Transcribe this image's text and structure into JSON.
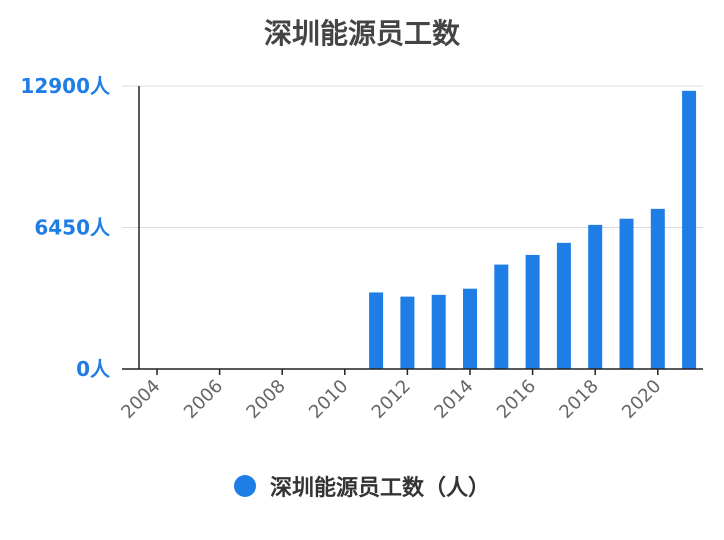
{
  "chart_data": {
    "type": "bar",
    "title": "深圳能源员工数",
    "categories": [
      "2004",
      "2005",
      "2006",
      "2007",
      "2008",
      "2009",
      "2010",
      "2011",
      "2012",
      "2013",
      "2014",
      "2015",
      "2016",
      "2017",
      "2018",
      "2019",
      "2020",
      "2021"
    ],
    "x_tick_labels": [
      "2004",
      "2006",
      "2008",
      "2010",
      "2012",
      "2014",
      "2016",
      "2018",
      "2020"
    ],
    "series": [
      {
        "name": "深圳能源员工数（人）",
        "color": "#1f7de6",
        "values": [
          null,
          null,
          null,
          null,
          null,
          null,
          null,
          3490,
          3300,
          3380,
          3660,
          4760,
          5200,
          5750,
          6570,
          6850,
          7300,
          12680
        ]
      }
    ],
    "y_ticks": [
      {
        "value": 12900,
        "label": "12900人"
      },
      {
        "value": 6450,
        "label": "6450人"
      },
      {
        "value": 0,
        "label": "0人"
      }
    ],
    "ylim": [
      0,
      12900
    ],
    "grid": true,
    "legend_position": "bottom-center",
    "axis_label_color": "#1f7de6"
  }
}
